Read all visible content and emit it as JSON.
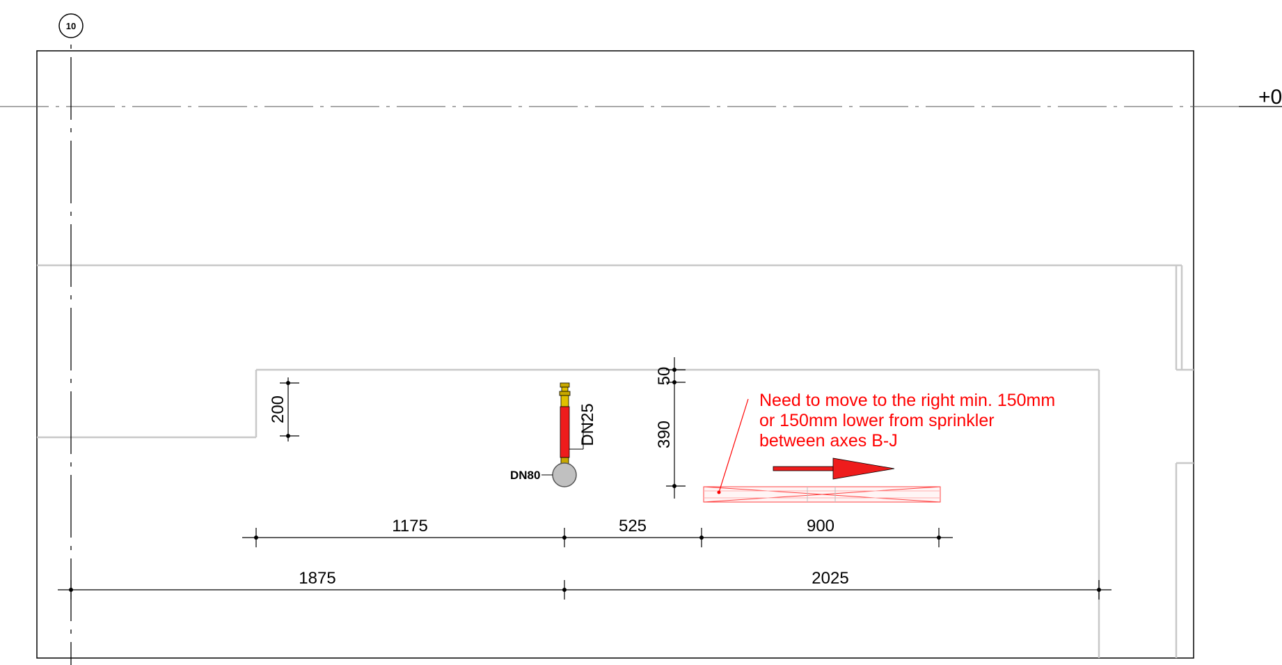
{
  "grid_axis": {
    "label": "10"
  },
  "elevation_marker": {
    "text": "+0"
  },
  "pipes": {
    "main_label": "DN80",
    "branch_label": "DN25"
  },
  "dimensions": {
    "vertical_left": "200",
    "vertical_top": "50",
    "vertical_mid": "390",
    "row1": [
      "1175",
      "525",
      "900"
    ],
    "row2": [
      "1875",
      "2025"
    ]
  },
  "note": {
    "lines": [
      "Need to move to the right min. 150mm",
      "or 150mm  lower from sprinkler",
      "between axes B-J"
    ]
  },
  "colors": {
    "annotation": "#ff0000",
    "pipe": "#ee1c1c",
    "fitting": "#c8a800",
    "wall": "#c8c8c8",
    "line": "#000000"
  },
  "icons": {
    "sprinkler": "sprinkler-head-icon",
    "arrow": "arrow-right-icon"
  }
}
